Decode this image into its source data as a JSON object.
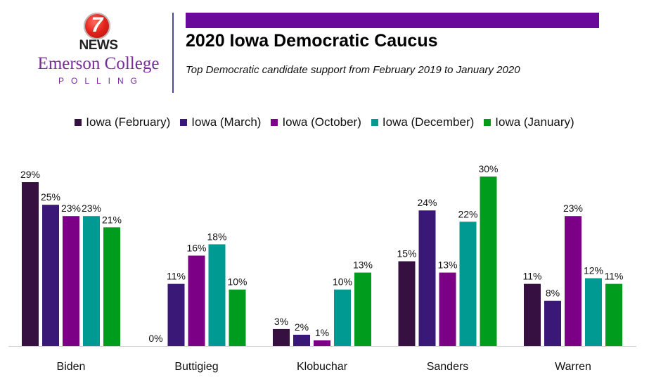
{
  "logo": {
    "icon": "channel-7-icon",
    "seven": "7",
    "news": "NEWS",
    "org": "Emerson College",
    "org_sub": "POLLING"
  },
  "header": {
    "bar_color": "#6a0a9a",
    "title": "2020 Iowa Democratic Caucus",
    "subtitle": "Top Democratic candidate support from February 2019 to January 2020"
  },
  "chart_data": {
    "type": "bar",
    "title": "2020 Iowa Democratic Caucus",
    "subtitle": "Top Democratic candidate support from February 2019 to January 2020",
    "xlabel": "",
    "ylabel": "",
    "ylim": [
      0,
      30
    ],
    "grid": false,
    "legend_position": "top-center",
    "value_suffix": "%",
    "categories": [
      "Biden",
      "Buttigieg",
      "Klobuchar",
      "Sanders",
      "Warren"
    ],
    "series": [
      {
        "name": "Iowa (February)",
        "color": "#351040",
        "values": [
          29,
          0,
          3,
          15,
          11
        ]
      },
      {
        "name": "Iowa (March)",
        "color": "#3a1878",
        "values": [
          25,
          11,
          2,
          24,
          8
        ]
      },
      {
        "name": "Iowa (October)",
        "color": "#7b0085",
        "values": [
          23,
          16,
          1,
          13,
          23
        ]
      },
      {
        "name": "Iowa (December)",
        "color": "#009a92",
        "values": [
          23,
          18,
          10,
          22,
          12
        ]
      },
      {
        "name": "Iowa (January)",
        "color": "#009c1e",
        "values": [
          21,
          10,
          13,
          30,
          11
        ]
      }
    ]
  }
}
